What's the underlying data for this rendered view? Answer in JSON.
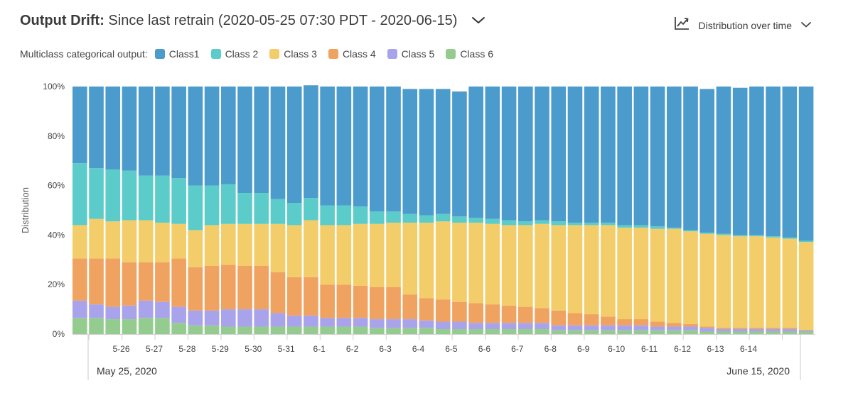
{
  "header": {
    "title_bold": "Output Drift:",
    "title_rest": " Since last retrain (2020-05-25 07:30 PDT - 2020-06-15)",
    "view_label": "Distribution over time"
  },
  "legend": {
    "title": "Multiclass categorical output:"
  },
  "chart_data": {
    "type": "stacked_bar",
    "ylabel": "Distribution",
    "yticks": [
      "0%",
      "20%",
      "40%",
      "60%",
      "80%",
      "100%"
    ],
    "ylim": [
      0,
      100
    ],
    "grid": false,
    "legend_position": "top-left",
    "x_tick_labels": [
      "5-26",
      "5-27",
      "5-28",
      "5-29",
      "5-30",
      "5-31",
      "6-1",
      "6-2",
      "6-3",
      "6-4",
      "6-5",
      "6-6",
      "6-7",
      "6-8",
      "6-9",
      "6-10",
      "6-11",
      "6-12",
      "6-13",
      "6-14"
    ],
    "start_date_label": "May 25, 2020",
    "end_date_label": "June 15, 2020",
    "series": [
      {
        "name": "Class 6",
        "color": "#94cc8f",
        "values": [
          6.5,
          6.5,
          6,
          6,
          6.5,
          6.5,
          4.5,
          3.5,
          3.5,
          3,
          3,
          3,
          3,
          3,
          3,
          3,
          3,
          3,
          2.5,
          2.5,
          2.5,
          2.5,
          2,
          2,
          2,
          2,
          2,
          2,
          2,
          1.5,
          1.5,
          1.5,
          1.5,
          1.5,
          1.5,
          1.5,
          1.5,
          1.5,
          1,
          1,
          1,
          1,
          1,
          1,
          1
        ]
      },
      {
        "name": "Class 5",
        "color": "#a9a3ec",
        "values": [
          7,
          5.5,
          5,
          5.5,
          7,
          6.5,
          6.5,
          6,
          6,
          7,
          7,
          7,
          5.5,
          4.5,
          4.5,
          3.5,
          3.5,
          3.5,
          3.5,
          3.5,
          3.5,
          3,
          3,
          3,
          2.5,
          2.5,
          2.5,
          2.5,
          2.5,
          2,
          2,
          2,
          2,
          2,
          2,
          1.5,
          1.5,
          1.5,
          1.5,
          1,
          1,
          1,
          1,
          1,
          0.5
        ]
      },
      {
        "name": "Class 4",
        "color": "#f0a260",
        "values": [
          17,
          18.5,
          19.5,
          17.5,
          15.5,
          16,
          19.5,
          17.5,
          18,
          18,
          17.5,
          17.5,
          16.5,
          15.5,
          15.5,
          13.5,
          13.5,
          13,
          13,
          13,
          10,
          9,
          9,
          8,
          8,
          7.5,
          7,
          6.5,
          6,
          6,
          5,
          4.5,
          3.5,
          2.5,
          2.5,
          2,
          1.5,
          1,
          0.5,
          0.5,
          0.5,
          0.5,
          0.5,
          0.5,
          0.2
        ]
      },
      {
        "name": "Class 3",
        "color": "#f3cd6a",
        "values": [
          13.5,
          16,
          15,
          17,
          17,
          16,
          14,
          15,
          16.5,
          16.5,
          17,
          17,
          19.5,
          21,
          23,
          24,
          24,
          25,
          25.5,
          26,
          29,
          30.5,
          31.5,
          32,
          32.5,
          32.5,
          32.5,
          33,
          34,
          34.5,
          35.5,
          36,
          37,
          37,
          37,
          37.5,
          38,
          37.5,
          37.5,
          37.5,
          37,
          37,
          36.5,
          36,
          35.5
        ]
      },
      {
        "name": "Class 2",
        "color": "#5bccc9",
        "values": [
          25,
          20.5,
          21,
          20,
          18,
          19,
          18.5,
          18,
          16,
          16,
          12.5,
          12.5,
          10,
          9,
          9,
          8,
          8,
          7,
          5,
          4.5,
          3.5,
          3,
          3,
          2.5,
          2,
          2,
          2,
          1.5,
          1.5,
          1.5,
          1,
          1,
          1,
          1,
          1,
          1,
          0.5,
          0.5,
          0.5,
          0.5,
          0.5,
          0.5,
          0.5,
          0.5,
          0.5
        ]
      },
      {
        "name": "Class1",
        "color": "#4b9bcc",
        "values": [
          31,
          33,
          33.5,
          34,
          36,
          36,
          37,
          40,
          40,
          39.5,
          43,
          43,
          45.5,
          47,
          45.5,
          48,
          48,
          48.5,
          50.5,
          50.5,
          50.5,
          51,
          50.5,
          50.5,
          53,
          53.5,
          54,
          54.5,
          54,
          54.5,
          55,
          55,
          55,
          56,
          56,
          56.5,
          57,
          58,
          58,
          59.5,
          59.5,
          60,
          60.5,
          61,
          62.3
        ]
      }
    ]
  }
}
